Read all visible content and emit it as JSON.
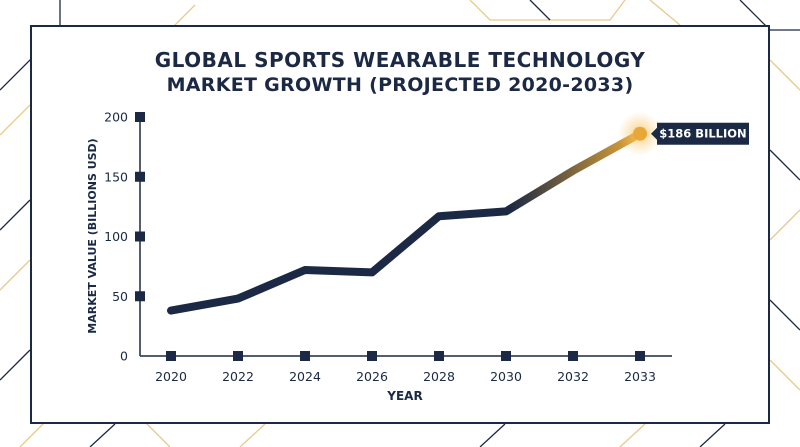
{
  "colors": {
    "navy": "#1b2944",
    "gold": "#e8a838",
    "decor_line": "#e9d9b0"
  },
  "chart_data": {
    "type": "line",
    "title": "GLOBAL SPORTS WEARABLE TECHNOLOGY",
    "subtitle": "MARKET GROWTH (PROJECTED 2020-2033)",
    "xlabel": "YEAR",
    "ylabel": "MARKET VALUE (BILLIONS USD)",
    "categories": [
      "2020",
      "2022",
      "2024",
      "2026",
      "2028",
      "2030",
      "2032",
      "2033"
    ],
    "series": [
      {
        "values": [
          38,
          48,
          72,
          70,
          117,
          121,
          155,
          186
        ]
      }
    ],
    "ylim": [
      0,
      200
    ],
    "yticks": [
      "0",
      "50",
      "100",
      "150",
      "200"
    ],
    "grid": false,
    "annotation": {
      "category": "2033",
      "value": 186,
      "text": "$186 BILLION"
    }
  }
}
